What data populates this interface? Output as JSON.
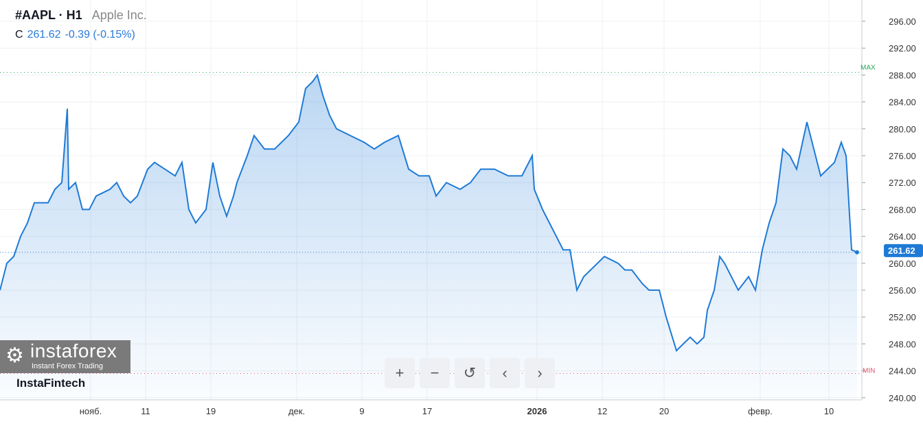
{
  "header": {
    "symbol": "#AAPL · H1",
    "name": "Apple Inc.",
    "c_label": "C",
    "close": "261.62",
    "change": "-0.39 (-0.15%)"
  },
  "brand": "InstaFintech",
  "logo": {
    "title": "instaforex",
    "subtitle": "Instant Forex Trading"
  },
  "toolbar": {
    "zoom_in": "+",
    "zoom_out": "−",
    "reset": "↺",
    "prev": "‹",
    "next": "›"
  },
  "colors": {
    "line": "#1e7ad6",
    "max": "#26a65b",
    "min": "#e0506a",
    "price": "#1e7ad6"
  },
  "chart_data": {
    "type": "area",
    "title": "#AAPL · H1",
    "ylim": [
      240,
      296
    ],
    "yticks": [
      "296.00",
      "292.00",
      "288.00",
      "284.00",
      "280.00",
      "276.00",
      "272.00",
      "268.00",
      "264.00",
      "260.00",
      "256.00",
      "252.00",
      "248.00",
      "244.00",
      "240.00"
    ],
    "xticks": [
      {
        "label": "нояб.",
        "i": 26
      },
      {
        "label": "11",
        "i": 42
      },
      {
        "label": "19",
        "i": 61
      },
      {
        "label": "дек.",
        "i": 86,
        "bold": false
      },
      {
        "label": "9",
        "i": 105
      },
      {
        "label": "17",
        "i": 124
      },
      {
        "label": "2026",
        "i": 156,
        "bold": true
      },
      {
        "label": "12",
        "i": 175
      },
      {
        "label": "20",
        "i": 193
      },
      {
        "label": "февр.",
        "i": 221
      },
      {
        "label": "10",
        "i": 241
      }
    ],
    "max_label": "MAX",
    "max_value": 288.4,
    "min_label": "MIN",
    "min_value": 243.6,
    "last_value": 261.62,
    "last_label": "261.62",
    "points": [
      [
        0,
        256
      ],
      [
        2,
        260
      ],
      [
        4,
        261
      ],
      [
        6,
        264
      ],
      [
        8,
        266
      ],
      [
        10,
        269
      ],
      [
        14,
        269
      ],
      [
        16,
        271
      ],
      [
        18,
        272
      ],
      [
        19.6,
        283
      ],
      [
        20,
        271
      ],
      [
        22,
        272
      ],
      [
        24,
        268
      ],
      [
        26,
        268
      ],
      [
        28,
        270
      ],
      [
        32,
        271
      ],
      [
        34,
        272
      ],
      [
        36,
        270
      ],
      [
        38,
        269
      ],
      [
        40,
        270
      ],
      [
        43,
        274
      ],
      [
        45,
        275
      ],
      [
        48,
        274
      ],
      [
        51,
        273
      ],
      [
        53,
        275
      ],
      [
        55,
        268
      ],
      [
        57,
        266
      ],
      [
        60,
        268
      ],
      [
        62,
        275
      ],
      [
        64,
        270
      ],
      [
        66,
        267
      ],
      [
        68,
        270
      ],
      [
        69,
        272
      ],
      [
        72,
        276
      ],
      [
        74,
        279
      ],
      [
        77,
        277
      ],
      [
        80,
        277
      ],
      [
        84,
        279
      ],
      [
        87,
        281
      ],
      [
        89,
        286
      ],
      [
        91,
        287
      ],
      [
        92.4,
        288
      ],
      [
        94,
        285
      ],
      [
        96,
        282
      ],
      [
        98,
        280
      ],
      [
        102,
        279
      ],
      [
        106,
        278
      ],
      [
        109,
        277
      ],
      [
        112,
        278
      ],
      [
        116,
        279
      ],
      [
        119,
        274
      ],
      [
        122,
        273
      ],
      [
        125,
        273
      ],
      [
        127,
        270
      ],
      [
        130,
        272
      ],
      [
        134,
        271
      ],
      [
        137,
        272
      ],
      [
        140,
        274
      ],
      [
        144,
        274
      ],
      [
        148,
        273
      ],
      [
        152,
        273
      ],
      [
        155,
        276
      ],
      [
        155.6,
        271
      ],
      [
        158,
        268
      ],
      [
        160,
        266
      ],
      [
        162,
        264
      ],
      [
        164,
        262
      ],
      [
        166,
        262
      ],
      [
        168,
        256
      ],
      [
        170,
        258
      ],
      [
        174,
        260
      ],
      [
        176,
        261
      ],
      [
        180,
        260
      ],
      [
        182,
        259
      ],
      [
        184,
        259
      ],
      [
        187,
        257
      ],
      [
        189,
        256
      ],
      [
        192,
        256
      ],
      [
        194,
        252
      ],
      [
        197,
        247
      ],
      [
        199,
        248
      ],
      [
        201,
        249
      ],
      [
        203,
        248
      ],
      [
        205,
        249
      ],
      [
        206,
        253
      ],
      [
        208,
        256
      ],
      [
        209.6,
        261
      ],
      [
        211,
        260
      ],
      [
        213,
        258
      ],
      [
        215,
        256
      ],
      [
        218,
        258
      ],
      [
        220,
        256
      ],
      [
        222,
        262
      ],
      [
        224,
        266
      ],
      [
        226,
        269
      ],
      [
        228,
        277
      ],
      [
        230,
        276
      ],
      [
        232,
        274
      ],
      [
        235,
        281
      ],
      [
        237,
        277
      ],
      [
        239,
        273
      ],
      [
        241,
        274
      ],
      [
        243,
        275
      ],
      [
        245,
        278
      ],
      [
        246.4,
        276
      ],
      [
        248,
        262
      ],
      [
        249.6,
        261.62
      ]
    ]
  }
}
